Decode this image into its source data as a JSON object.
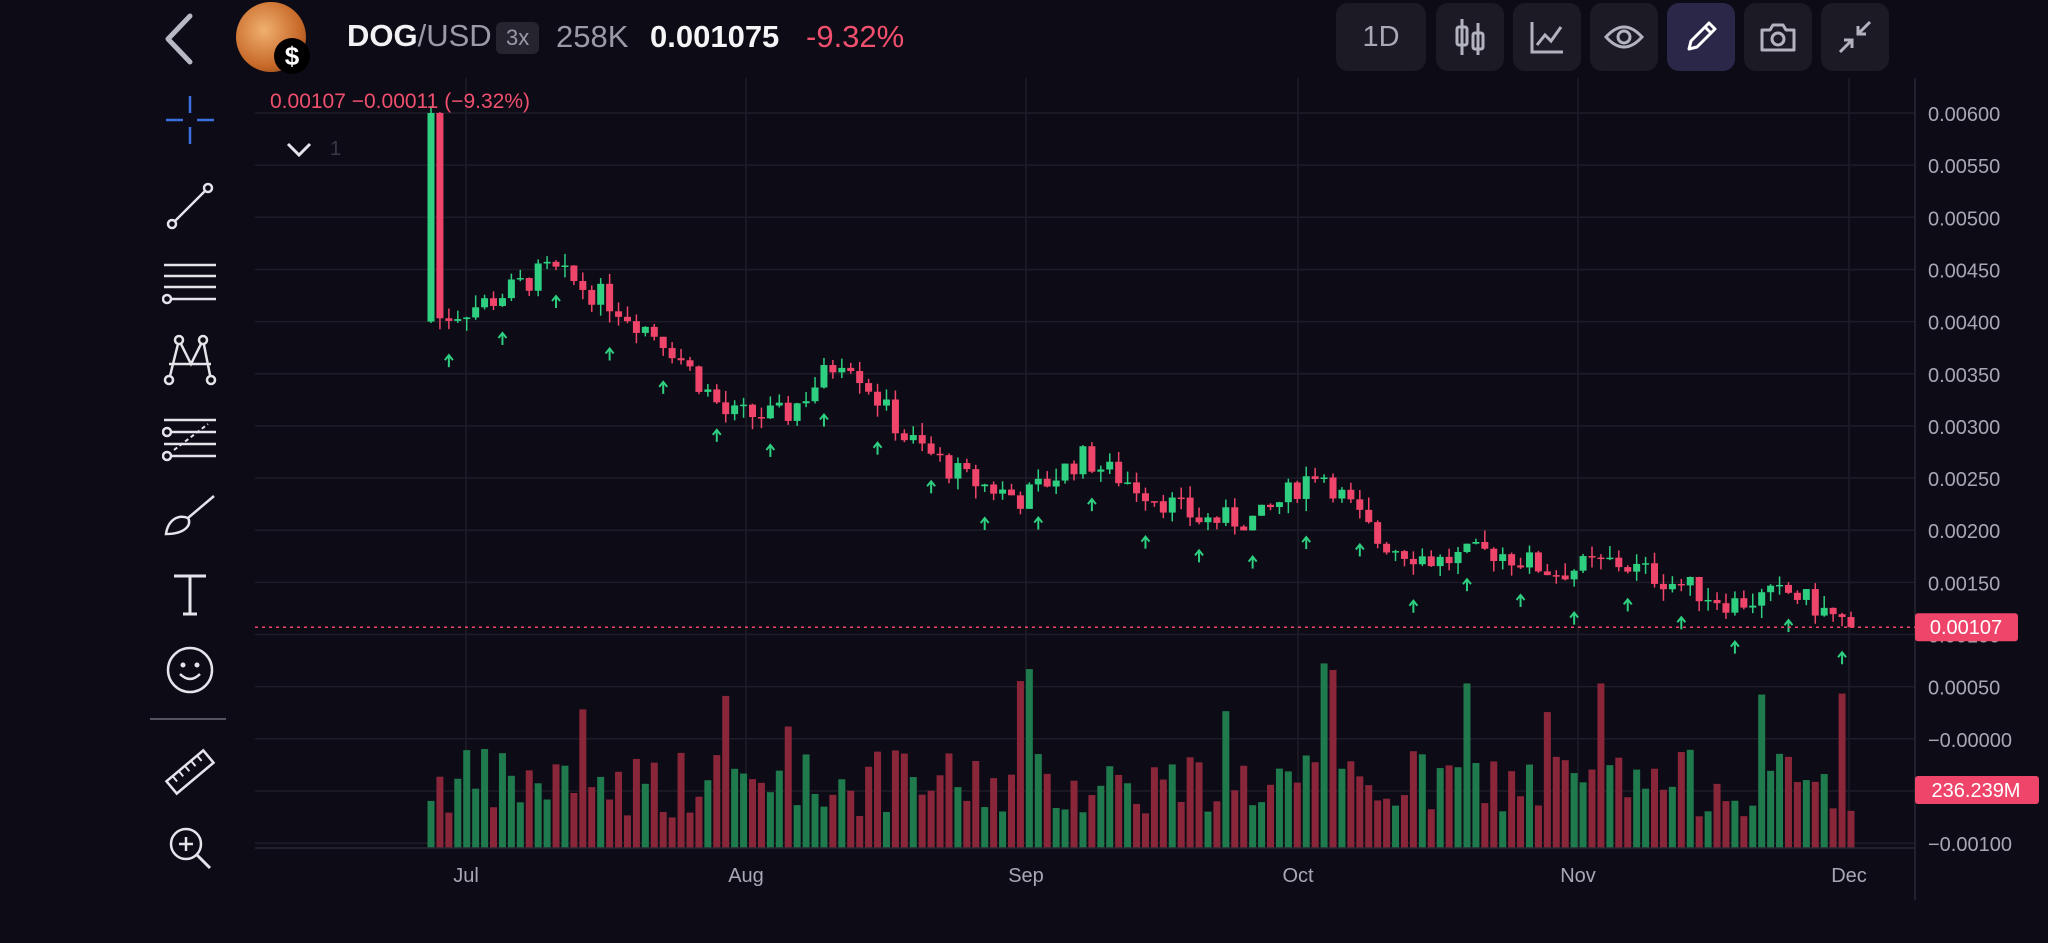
{
  "header": {
    "symbol_base": "DOG",
    "symbol_quote": "/USD",
    "leverage": "3x",
    "volume": "258K",
    "last_price": "0.001075",
    "change_pct": "-9.32%",
    "timeframe": "1D",
    "buttons": [
      {
        "name": "timeframe-button",
        "label": "1D",
        "icon": "",
        "active": false
      },
      {
        "name": "candles-button",
        "label": "",
        "icon": "candlestick-icon",
        "active": false
      },
      {
        "name": "indicators-button",
        "label": "",
        "icon": "line-chart-icon",
        "active": false
      },
      {
        "name": "visibility-button",
        "label": "",
        "icon": "eye-icon",
        "active": false
      },
      {
        "name": "drawing-button",
        "label": "",
        "icon": "pencil-icon",
        "active": true
      },
      {
        "name": "screenshot-button",
        "label": "",
        "icon": "camera-icon",
        "active": false
      },
      {
        "name": "collapse-button",
        "label": "",
        "icon": "collapse-icon",
        "active": false
      }
    ]
  },
  "legend": {
    "ohlc_text": "0.00107  −0.00011 (−9.32%)",
    "collapse_count": "1"
  },
  "tools": [
    "crosshair-icon",
    "trend-line-icon",
    "horizontal-lines-icon",
    "pattern-icon",
    "fib-icon",
    "brush-icon",
    "text-tool-icon",
    "emoji-icon",
    "ruler-icon",
    "zoom-in-icon"
  ],
  "colors": {
    "background": "#0d0b15",
    "up": "#2ecf80",
    "down": "#f0456a",
    "up_volume": "#1f7a4d",
    "down_volume": "#8a2639",
    "price_tag": "#f0456a"
  },
  "chart_data": {
    "type": "candlestick",
    "x_labels": [
      "Jul",
      "Aug",
      "Sep",
      "Oct",
      "Nov",
      "Dec"
    ],
    "y_ticks": [
      "0.00600",
      "0.00550",
      "0.00500",
      "0.00450",
      "0.00400",
      "0.00350",
      "0.00300",
      "0.00250",
      "0.00200",
      "0.00150",
      "0.00100",
      "0.00050",
      "−0.00000",
      "−0.00050",
      "−0.00100"
    ],
    "y_range": [
      -0.001,
      0.006
    ],
    "current_price_label": "0.00107",
    "current_volume_label": "236.239M",
    "grid": true,
    "signal_arrows": "green up arrows below selected candles",
    "series_close_approx": [
      {
        "date": "Jun 26",
        "close": 0.004
      },
      {
        "date": "Jul 1",
        "close": 0.0042
      },
      {
        "date": "Jul 8",
        "close": 0.0045
      },
      {
        "date": "Jul 15",
        "close": 0.0042
      },
      {
        "date": "Jul 22",
        "close": 0.0038
      },
      {
        "date": "Jul 29",
        "close": 0.0031
      },
      {
        "date": "Aug 5",
        "close": 0.0031
      },
      {
        "date": "Aug 10",
        "close": 0.0037
      },
      {
        "date": "Aug 17",
        "close": 0.0029
      },
      {
        "date": "Aug 24",
        "close": 0.0025
      },
      {
        "date": "Aug 31",
        "close": 0.0023
      },
      {
        "date": "Sep 7",
        "close": 0.0027
      },
      {
        "date": "Sep 14",
        "close": 0.0024
      },
      {
        "date": "Sep 21",
        "close": 0.0021
      },
      {
        "date": "Sep 28",
        "close": 0.0021
      },
      {
        "date": "Oct 3",
        "close": 0.0026
      },
      {
        "date": "Oct 10",
        "close": 0.0019
      },
      {
        "date": "Oct 17",
        "close": 0.0017
      },
      {
        "date": "Oct 24",
        "close": 0.0018
      },
      {
        "date": "Oct 31",
        "close": 0.0016
      },
      {
        "date": "Nov 7",
        "close": 0.0017
      },
      {
        "date": "Nov 14",
        "close": 0.0015
      },
      {
        "date": "Nov 21",
        "close": 0.0013
      },
      {
        "date": "Nov 28",
        "close": 0.0014
      },
      {
        "date": "Dec 1",
        "close": 0.00107
      }
    ]
  }
}
